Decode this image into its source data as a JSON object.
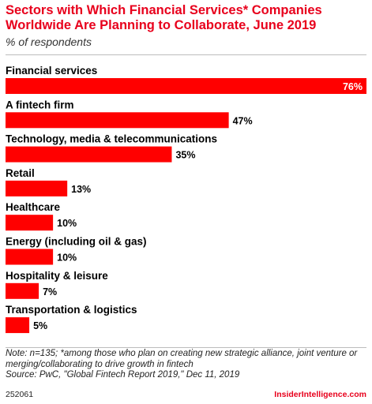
{
  "header": {
    "title": "Sectors with Which Financial Services* Companies Worldwide Are Planning to Collaborate, June 2019",
    "subtitle": "% of respondents"
  },
  "chart_data": {
    "type": "bar",
    "orientation": "horizontal",
    "categories": [
      "Financial services",
      "A fintech firm",
      "Technology, media & telecommunications",
      "Retail",
      "Healthcare",
      "Energy (including oil & gas)",
      "Hospitality & leisure",
      "Transportation & logistics"
    ],
    "values": [
      76,
      47,
      35,
      13,
      10,
      10,
      7,
      5
    ],
    "value_labels": [
      "76%",
      "47%",
      "35%",
      "13%",
      "10%",
      "10%",
      "7%",
      "5%"
    ],
    "xlim": [
      0,
      76
    ],
    "bar_color": "#ff0000",
    "grid": false,
    "legend": "none"
  },
  "footer": {
    "note": "Note: n=135; *among those who plan on creating new strategic alliance, joint venture or merging/collaborating to drive growth in fintech",
    "source": "Source: PwC, \"Global Fintech Report 2019,\" Dec 11, 2019",
    "id": "252061",
    "brand": "InsiderIntelligence.com"
  },
  "colors": {
    "title": "#e8001c",
    "bar": "#ff0000",
    "brand": "#e8001c"
  }
}
